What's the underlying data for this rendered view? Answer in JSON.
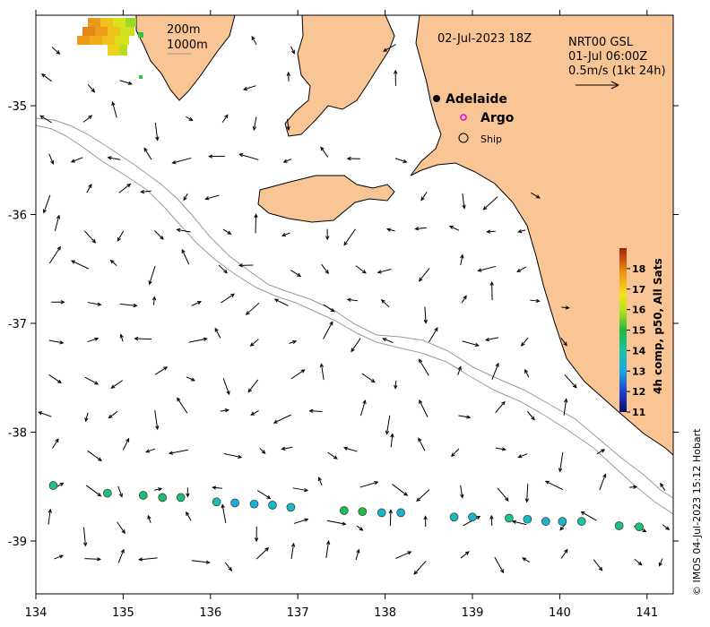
{
  "title": "02-Jul-2023 18Z",
  "current_info": {
    "line1": "NRT00 GSL",
    "line2": "01-Jul 06:00Z",
    "line3": "0.5m/s (1kt 24h)"
  },
  "legend": {
    "depth_labels": [
      "200m",
      "1000m"
    ],
    "adelaide": "Adelaide",
    "argo": "Argo",
    "ship": "Ship"
  },
  "colorbar": {
    "label": "4h comp, p50, All Sats",
    "ticks": [
      "11",
      "12",
      "13",
      "14",
      "15",
      "16",
      "17",
      "18"
    ],
    "min": 11,
    "max": 19
  },
  "x_ticks": [
    "134",
    "135",
    "136",
    "137",
    "138",
    "139",
    "140",
    "141"
  ],
  "y_ticks": [
    "-35",
    "-36",
    "-37",
    "-38",
    "-39"
  ],
  "credit": "© IMOS 04-Jul-2023 15:12 Hobart",
  "colors": {
    "land": "#f9c594",
    "argo": "#e000e0",
    "coast": "#000000",
    "contour": "#9a9a9a"
  },
  "sst_points": [
    {
      "lon": 134.2,
      "lat": -38.49,
      "sst": 14.3
    },
    {
      "lon": 134.82,
      "lat": -38.56,
      "sst": 14.4
    },
    {
      "lon": 135.23,
      "lat": -38.58,
      "sst": 14.5
    },
    {
      "lon": 135.45,
      "lat": -38.6,
      "sst": 14.5
    },
    {
      "lon": 135.66,
      "lat": -38.6,
      "sst": 14.4
    },
    {
      "lon": 136.07,
      "lat": -38.64,
      "sst": 13.8
    },
    {
      "lon": 136.28,
      "lat": -38.65,
      "sst": 13.2
    },
    {
      "lon": 136.5,
      "lat": -38.66,
      "sst": 13.3
    },
    {
      "lon": 136.71,
      "lat": -38.67,
      "sst": 13.5
    },
    {
      "lon": 136.92,
      "lat": -38.69,
      "sst": 13.6
    },
    {
      "lon": 137.53,
      "lat": -38.72,
      "sst": 14.7
    },
    {
      "lon": 137.74,
      "lat": -38.73,
      "sst": 14.9
    },
    {
      "lon": 137.96,
      "lat": -38.74,
      "sst": 13.6
    },
    {
      "lon": 138.18,
      "lat": -38.74,
      "sst": 13.3
    },
    {
      "lon": 138.79,
      "lat": -38.78,
      "sst": 13.6
    },
    {
      "lon": 139.0,
      "lat": -38.78,
      "sst": 13.6
    },
    {
      "lon": 139.42,
      "lat": -38.79,
      "sst": 14.2
    },
    {
      "lon": 139.63,
      "lat": -38.8,
      "sst": 13.6
    },
    {
      "lon": 139.84,
      "lat": -38.82,
      "sst": 13.4
    },
    {
      "lon": 140.03,
      "lat": -38.82,
      "sst": 13.5
    },
    {
      "lon": 140.25,
      "lat": -38.82,
      "sst": 14.1
    },
    {
      "lon": 140.68,
      "lat": -38.86,
      "sst": 14.3
    },
    {
      "lon": 140.91,
      "lat": -38.87,
      "sst": 14.4
    }
  ]
}
